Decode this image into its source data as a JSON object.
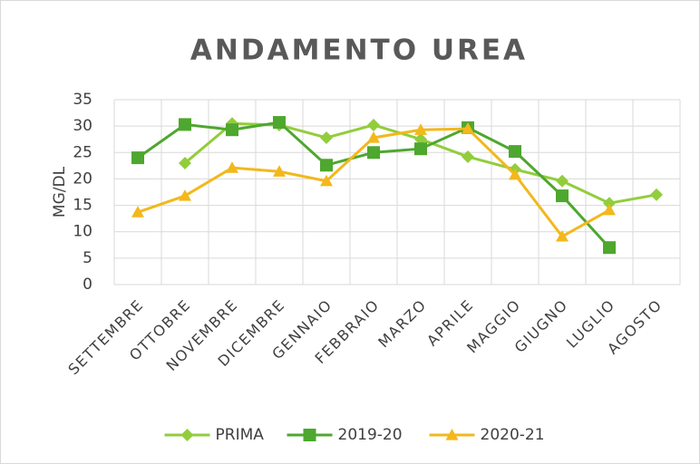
{
  "chart_data": {
    "type": "line",
    "title": "ANDAMENTO UREA",
    "y_label": "MG/DL",
    "categories": [
      "SETTEMBRE",
      "OTTOBRE",
      "NOVEMBRE",
      "DICEMBRE",
      "GENNAIO",
      "FEBBRAIO",
      "MARZO",
      "APRILE",
      "MAGGIO",
      "GIUGNO",
      "LUGLIO",
      "AGOSTO"
    ],
    "series": [
      {
        "name": "PRIMA",
        "color": "#92cd3c",
        "marker": "diamond",
        "values": [
          null,
          23.0,
          30.5,
          30.2,
          27.8,
          30.2,
          27.5,
          24.2,
          21.8,
          19.6,
          15.4,
          17.0
        ]
      },
      {
        "name": "2019-20",
        "color": "#4ea72e",
        "marker": "square",
        "values": [
          24.0,
          30.3,
          29.3,
          30.7,
          22.6,
          25.0,
          25.7,
          29.7,
          25.2,
          16.8,
          7.0,
          null
        ]
      },
      {
        "name": "2020-21",
        "color": "#f2b81c",
        "marker": "triangle",
        "values": [
          13.7,
          16.8,
          22.1,
          21.4,
          19.6,
          27.8,
          29.3,
          29.5,
          20.8,
          9.1,
          14.1,
          null
        ]
      }
    ],
    "ylim": [
      0,
      35
    ],
    "yticks": [
      0,
      5,
      10,
      15,
      20,
      25,
      30,
      35
    ],
    "grid": true,
    "legend": "bottom"
  }
}
